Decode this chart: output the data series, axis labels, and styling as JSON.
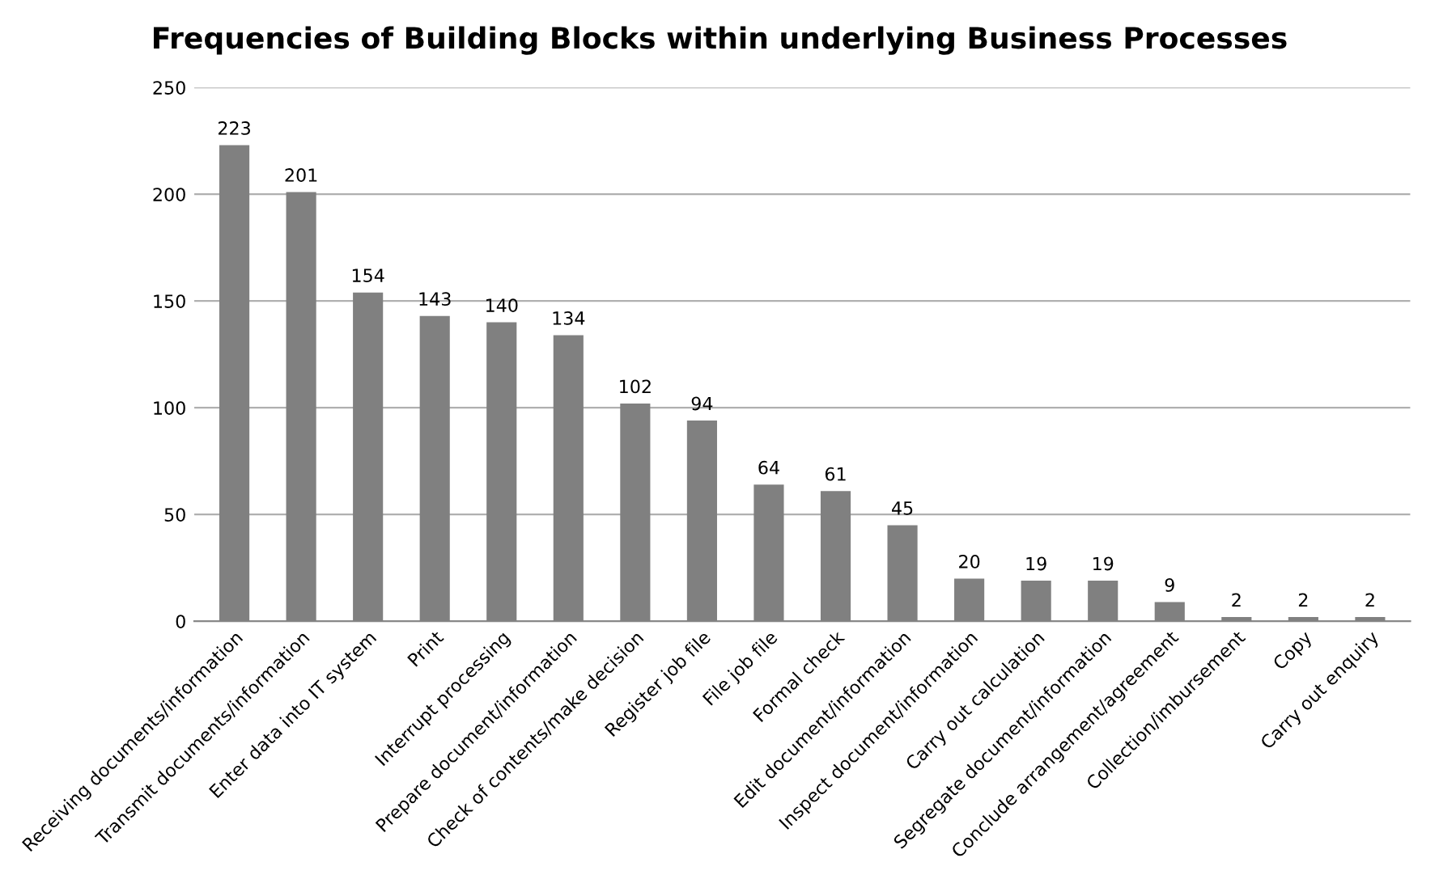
{
  "chart_data": {
    "type": "bar",
    "title": "Frequencies of Building Blocks within underlying Business Processes",
    "categories": [
      "Receiving documents/information",
      "Transmit documents/information",
      "Enter data into IT system",
      "Print",
      "Interrupt processing",
      "Prepare document/information",
      "Check of contents/make decision",
      "Register job file",
      "File job file",
      "Formal check",
      "Edit document/information",
      "Inspect document/information",
      "Carry out calculation",
      "Segregate document/information",
      "Conclude arrangement/agreement",
      "Collection/imbursement",
      "Copy",
      "Carry out enquiry"
    ],
    "values": [
      223,
      201,
      154,
      143,
      140,
      134,
      102,
      94,
      64,
      61,
      45,
      20,
      19,
      19,
      9,
      2,
      2,
      2
    ],
    "color": "#808080",
    "ylim": [
      0,
      250
    ],
    "yticks": [
      0,
      50,
      100,
      150,
      200,
      250
    ],
    "grid": "y",
    "data_labels": true
  }
}
